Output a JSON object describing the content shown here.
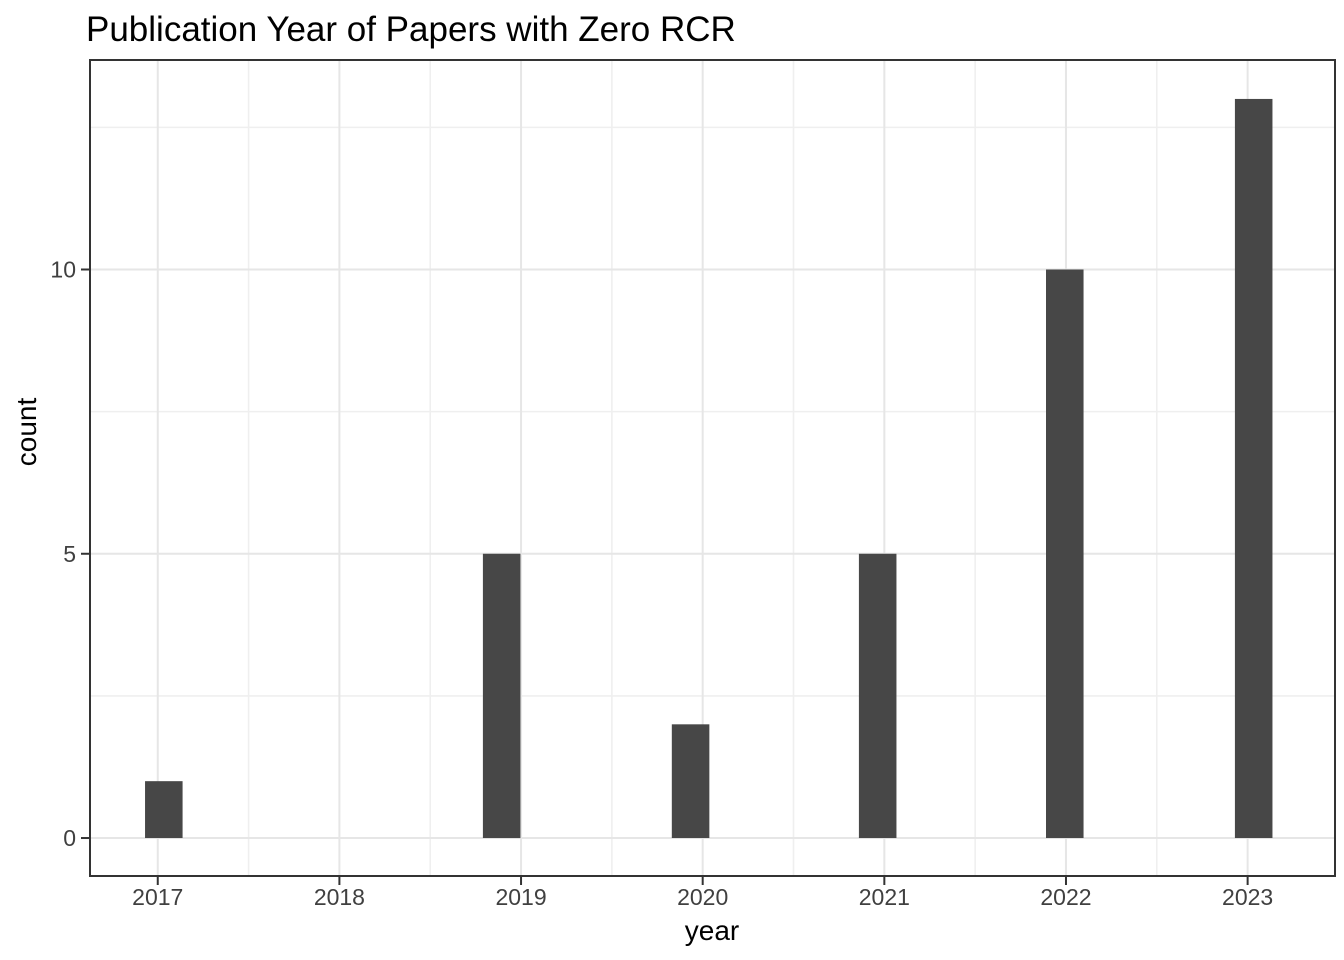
{
  "chart_data": {
    "type": "histogram",
    "title": "Publication Year of Papers with Zero RCR",
    "xlabel": "year",
    "ylabel": "count",
    "categories": [
      "2017",
      "2018",
      "2019",
      "2020",
      "2021",
      "2022",
      "2023"
    ],
    "values": [
      1,
      0,
      5,
      2,
      5,
      10,
      13
    ],
    "x_ticks": [
      2017,
      2018,
      2019,
      2020,
      2021,
      2022,
      2023
    ],
    "x_tick_labels": [
      "2017",
      "2018",
      "2019",
      "2020",
      "2021",
      "2022",
      "2023"
    ],
    "y_ticks": [
      0,
      5,
      10
    ],
    "y_tick_labels": [
      "0",
      "5",
      "10"
    ],
    "x_minor_ticks": [
      2017.5,
      2018.5,
      2019.5,
      2020.5,
      2021.5,
      2022.5
    ],
    "y_minor_ticks": [
      2.5,
      7.5,
      12.5
    ],
    "xlim": [
      2016.627,
      2023.481
    ],
    "ylim": [
      -0.668,
      13.685
    ],
    "bins": {
      "width": 0.2067,
      "left_edges": [
        2016.93,
        2018.79,
        2019.83,
        2020.86,
        2021.89,
        2022.93
      ],
      "counts": [
        1,
        5,
        2,
        5,
        10,
        13
      ]
    },
    "grid": {
      "major": true,
      "minor": true
    },
    "legend": "none",
    "colors": {
      "bar_fill": "#474747",
      "grid_major": "#E6E6E6",
      "grid_minor": "#EFEFEF",
      "panel_border": "#333333",
      "tick_mark": "#333333",
      "tick_label": "#404040",
      "axis_title": "#000000",
      "title": "#000000",
      "background": "#FFFFFF"
    }
  }
}
